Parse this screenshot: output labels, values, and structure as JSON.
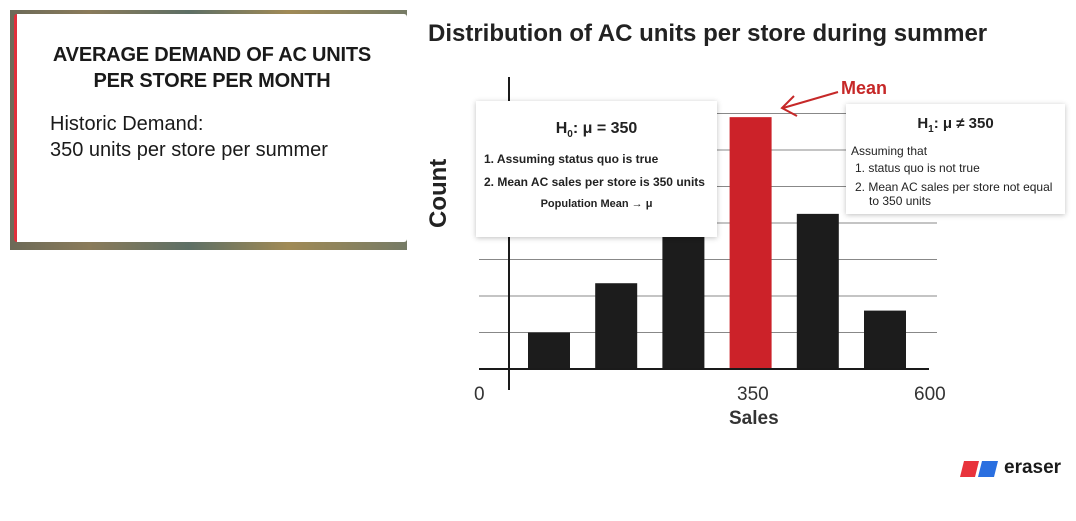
{
  "card": {
    "title_line1": "AVERAGE DEMAND OF AC UNITS",
    "title_line2": "PER STORE PER MONTH",
    "body_line1": "Historic Demand:",
    "body_line2": "350 units per store per summer"
  },
  "chart_data": {
    "type": "bar",
    "title": "Distribution of AC units per store during summer",
    "xlabel": "Sales",
    "ylabel": "Count",
    "x_ticks": [
      "0",
      "350",
      "600"
    ],
    "values": [
      1,
      2.35,
      4.1,
      6.9,
      4.25,
      1.6
    ],
    "highlight_index": 3,
    "bar_color": "#1c1c1c",
    "highlight_color": "#cc2229",
    "ylim": [
      0,
      8
    ],
    "grid": true,
    "annotation": "Mean"
  },
  "h0": {
    "heading_prefix": "H",
    "heading_sub": "0",
    "heading_suffix": ": μ = 350",
    "items": [
      "1.  Assuming status quo is true",
      "2.  Mean AC sales per store is 350 units"
    ],
    "note": "Population Mean → μ"
  },
  "h1": {
    "heading_prefix": "H",
    "heading_sub": "1",
    "heading_suffix": ": μ ≠ 350",
    "assume": "Assuming that",
    "items": [
      "1.  status quo is not true",
      "2.  Mean AC sales per store not equal"
    ],
    "item2_cont": "to 350 units"
  },
  "logo": {
    "text": "eraser",
    "colors": [
      "#e8333c",
      "#2a6fe0"
    ]
  }
}
